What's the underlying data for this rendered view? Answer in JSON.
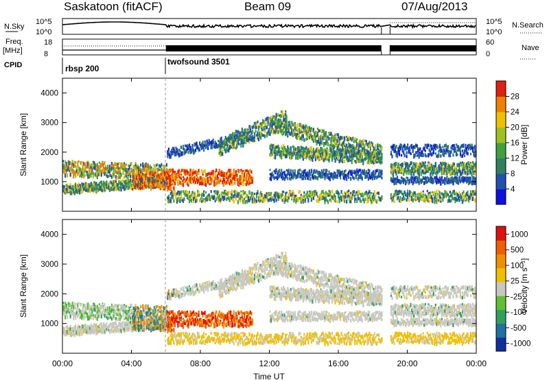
{
  "header": {
    "station": "Saskatoon (fitACF)",
    "beam": "Beam 09",
    "date": "07/Aug/2013"
  },
  "top_panels": {
    "nsky_label": "N.Sky",
    "nsky_ticks": [
      "10^5",
      "10^0"
    ],
    "nsearch_label": "N.Search",
    "nsearch_ticks": [
      "10^5",
      "10^0"
    ],
    "freq_label": "Freq.",
    "freq_unit": "[MHz]",
    "freq_ticks": [
      "18",
      "8"
    ],
    "nave_label": "Nave",
    "nave_ticks": [
      "60",
      "0"
    ],
    "cpid_label": "CPID",
    "cpid_segments": [
      {
        "name": "rbsp 200",
        "start_hour": 0,
        "end_hour": 6
      },
      {
        "name": "twofsound 3501",
        "start_hour": 6,
        "end_hour": 24
      }
    ]
  },
  "chart_data": [
    {
      "type": "heatmap",
      "name": "power",
      "ylabel": "Slant Range [km]",
      "xlabel": "",
      "x_range_hours": [
        0,
        24
      ],
      "ylim": [
        0,
        4500
      ],
      "yticks": [
        "1000",
        "2000",
        "3000",
        "4000"
      ],
      "colorbar": {
        "label": "Power [dB]",
        "ticks": [
          "4",
          "8",
          "12",
          "16",
          "20",
          "24",
          "28"
        ],
        "colors": [
          "#1010e0",
          "#2050b0",
          "#308060",
          "#40a040",
          "#a0c020",
          "#f0c000",
          "#f08000",
          "#e02010"
        ]
      },
      "data_gap_hours": [
        18.5,
        19.0
      ]
    },
    {
      "type": "heatmap",
      "name": "velocity",
      "ylabel": "Slant Range [km]",
      "xlabel": "Time UT",
      "x_range_hours": [
        0,
        24
      ],
      "ylim": [
        0,
        4500
      ],
      "yticks": [
        "1000",
        "2000",
        "3000",
        "4000"
      ],
      "xticks": [
        "00:00",
        "04:00",
        "08:00",
        "12:00",
        "16:00",
        "20:00",
        "00:00"
      ],
      "colorbar": {
        "label": "Velocity [m s⁻¹]",
        "ticks": [
          "1000",
          "500",
          "100",
          "25",
          "-25",
          "-100",
          "-500",
          "-1000"
        ],
        "colors": [
          "#1030a0",
          "#2070a0",
          "#30a060",
          "#60c030",
          "#c8c8c0",
          "#f0c000",
          "#f09000",
          "#f06000",
          "#e01010"
        ]
      },
      "data_gap_hours": [
        18.5,
        19.0
      ]
    }
  ]
}
